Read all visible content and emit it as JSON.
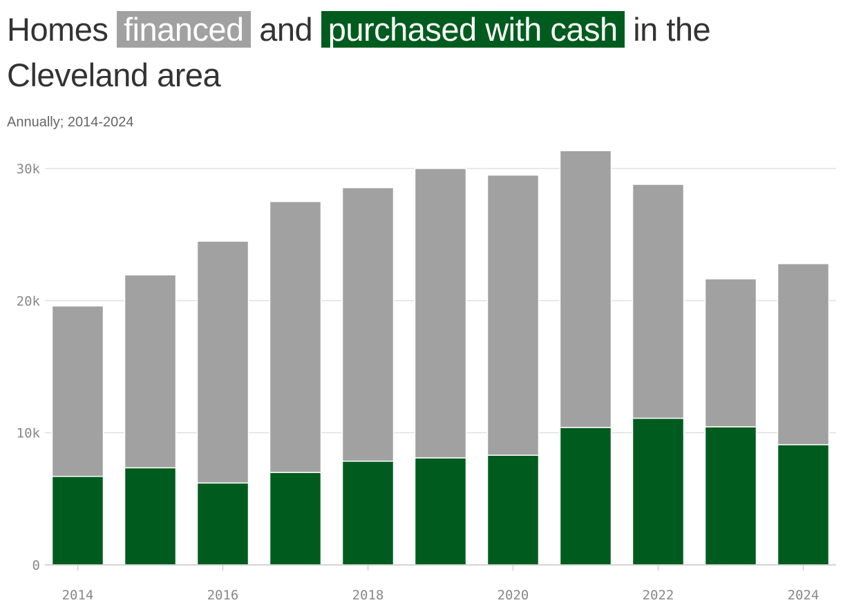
{
  "title": {
    "prefix": "Homes ",
    "financed_chip": "financed",
    "middle": " and ",
    "cash_chip": "purchased with cash",
    "suffix": " in the Cleveland area"
  },
  "subtitle": "Annually; 2014-2024",
  "colors": {
    "financed": "#a0a1a0",
    "cash": "#005c1e",
    "grid": "#e0e0e0",
    "tick_text": "#888888"
  },
  "chart_data": {
    "type": "bar",
    "stacked": true,
    "categories": [
      "2014",
      "2015",
      "2016",
      "2017",
      "2018",
      "2019",
      "2020",
      "2021",
      "2022",
      "2023",
      "2024"
    ],
    "series": [
      {
        "name": "purchased with cash",
        "values": [
          6700,
          7350,
          6200,
          7000,
          7850,
          8100,
          8300,
          10400,
          11100,
          10450,
          9100
        ]
      },
      {
        "name": "financed",
        "values": [
          12900,
          14600,
          18300,
          20500,
          20700,
          21900,
          21200,
          20950,
          17700,
          11200,
          13700
        ]
      }
    ],
    "ylim": [
      0,
      30000
    ],
    "yticks": [
      0,
      10000,
      20000,
      30000
    ],
    "ytick_labels": [
      "0",
      "10k",
      "20k",
      "30k"
    ],
    "xtick_labels": [
      "2014",
      "2016",
      "2018",
      "2020",
      "2022",
      "2024"
    ],
    "grid": true,
    "legend": "title"
  }
}
